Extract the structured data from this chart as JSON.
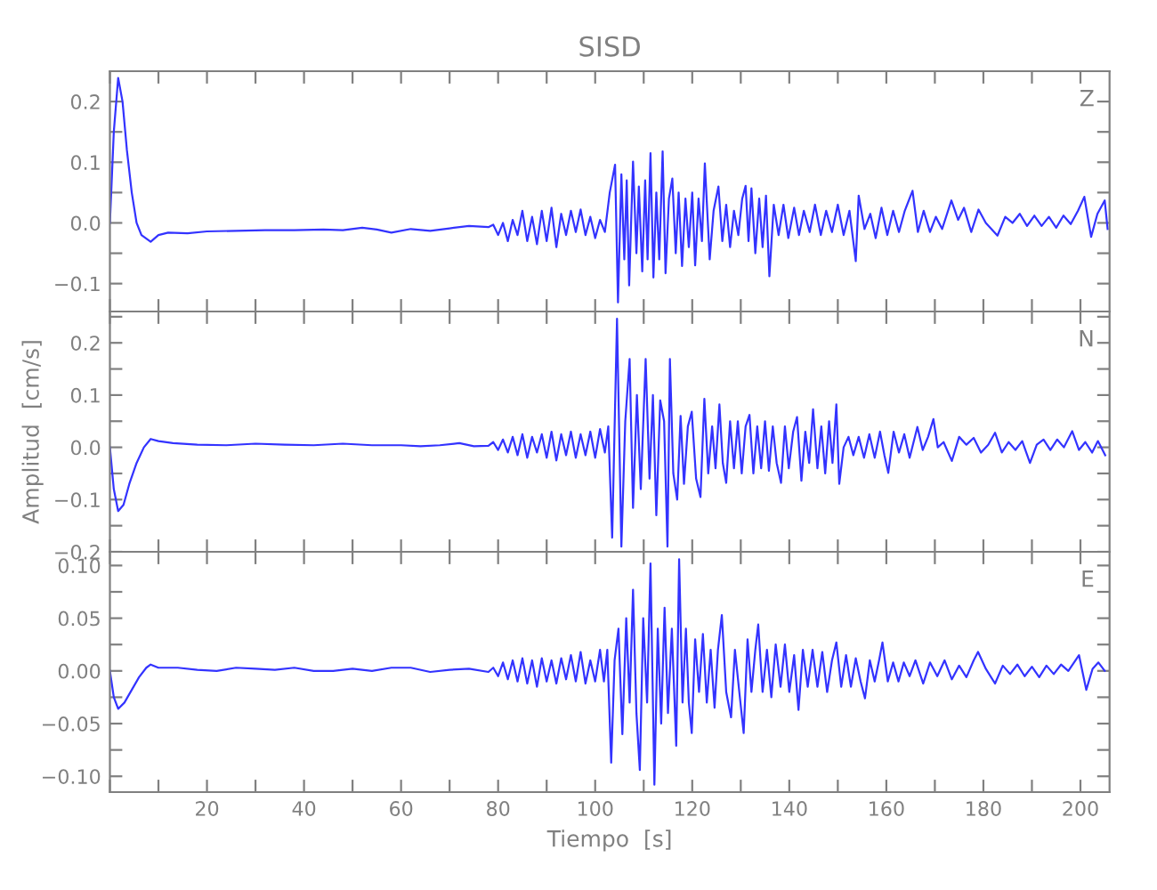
{
  "chart_data": [
    {
      "type": "line",
      "title": "SISD",
      "annotations": [
        "Z"
      ],
      "tick_labels": "y",
      "xlim": [
        0,
        206
      ],
      "xticks": [
        {
          "value": 0,
          "label": null
        },
        {
          "value": 10,
          "label": null
        },
        {
          "value": 20,
          "label": null
        },
        {
          "value": 30,
          "label": null
        },
        {
          "value": 40,
          "label": null
        },
        {
          "value": 50,
          "label": null
        },
        {
          "value": 60,
          "label": null
        },
        {
          "value": 70,
          "label": null
        },
        {
          "value": 80,
          "label": null
        },
        {
          "value": 90,
          "label": null
        },
        {
          "value": 100,
          "label": null
        },
        {
          "value": 110,
          "label": null
        },
        {
          "value": 120,
          "label": null
        },
        {
          "value": 130,
          "label": null
        },
        {
          "value": 140,
          "label": null
        },
        {
          "value": 150,
          "label": null
        },
        {
          "value": 160,
          "label": null
        },
        {
          "value": 170,
          "label": null
        },
        {
          "value": 180,
          "label": null
        },
        {
          "value": 190,
          "label": null
        },
        {
          "value": 200,
          "label": null
        }
      ],
      "ylim": [
        -0.146,
        0.25
      ],
      "yticks": [
        {
          "value": -0.1,
          "label": "−0.1"
        },
        {
          "value": -0.05,
          "label": null
        },
        {
          "value": 0,
          "label": "0.0"
        },
        {
          "value": 0.05,
          "label": null
        },
        {
          "value": 0.1,
          "label": "0.1"
        },
        {
          "value": 0.15,
          "label": null
        },
        {
          "value": 0.2,
          "label": "0.2"
        }
      ],
      "series": [
        {
          "color": "#3333ff",
          "x": [
            0,
            0.8,
            1.7,
            2.6,
            3.5,
            4.5,
            5.5,
            6.5,
            8.4,
            10,
            12,
            16,
            20,
            26,
            32,
            38,
            44,
            48,
            52,
            55,
            58,
            62,
            66,
            70,
            74,
            78,
            79,
            80,
            81,
            82,
            83,
            84,
            85,
            86,
            87,
            88,
            89,
            90,
            91,
            92,
            93,
            94,
            95,
            96,
            97,
            98,
            99,
            100,
            101,
            102,
            103,
            104.1,
            104.7,
            105.4,
            106,
            106.5,
            107,
            107.8,
            108.5,
            109,
            109.7,
            110.3,
            110.8,
            111.4,
            112,
            112.6,
            113.2,
            113.9,
            114.5,
            115.2,
            115.9,
            116.6,
            117.2,
            117.9,
            118.6,
            119.3,
            120,
            120.6,
            121.3,
            122,
            122.6,
            123.6,
            124.4,
            125.4,
            126.2,
            127,
            127.8,
            128.6,
            129.5,
            130.3,
            131,
            131.6,
            132.2,
            133,
            133.8,
            134.5,
            135.2,
            135.9,
            136.8,
            137.8,
            138.8,
            139.8,
            141,
            142,
            143,
            144.2,
            145.3,
            146.5,
            147.6,
            148.8,
            150,
            151.2,
            152.4,
            153.7,
            154.3,
            155.5,
            156.7,
            157.8,
            159,
            160.2,
            161.4,
            162.6,
            163.8,
            165.4,
            166.5,
            167.7,
            169,
            170.2,
            171.5,
            173.4,
            174.8,
            176,
            177.5,
            179,
            180.5,
            182.9,
            184.5,
            186,
            187.5,
            189,
            190.5,
            192,
            193.5,
            195,
            196.5,
            198,
            199.5,
            200.8,
            202.2,
            203.5,
            205,
            205.6
          ],
          "values": [
            0.0,
            0.15,
            0.239,
            0.2,
            0.12,
            0.05,
            0.0,
            -0.02,
            -0.031,
            -0.02,
            -0.016,
            -0.017,
            -0.014,
            -0.013,
            -0.012,
            -0.012,
            -0.011,
            -0.012,
            -0.008,
            -0.011,
            -0.016,
            -0.01,
            -0.013,
            -0.009,
            -0.005,
            -0.007,
            -0.003,
            -0.02,
            0.0,
            -0.03,
            0.005,
            -0.02,
            0.02,
            -0.03,
            0.01,
            -0.035,
            0.02,
            -0.03,
            0.025,
            -0.04,
            0.015,
            -0.02,
            0.02,
            -0.015,
            0.022,
            -0.02,
            0.01,
            -0.025,
            0.005,
            -0.015,
            0.05,
            0.096,
            -0.131,
            0.08,
            -0.06,
            0.07,
            -0.103,
            0.101,
            -0.05,
            0.06,
            -0.08,
            0.07,
            -0.06,
            0.115,
            -0.09,
            0.05,
            -0.06,
            0.118,
            -0.083,
            0.04,
            0.073,
            -0.05,
            0.05,
            -0.071,
            0.04,
            -0.04,
            0.05,
            -0.07,
            0.04,
            -0.03,
            0.098,
            -0.06,
            0.02,
            0.06,
            -0.03,
            0.03,
            -0.04,
            0.02,
            -0.02,
            0.04,
            0.061,
            -0.03,
            0.057,
            -0.05,
            0.04,
            -0.04,
            0.045,
            -0.088,
            0.03,
            -0.02,
            0.03,
            -0.025,
            0.025,
            -0.02,
            0.02,
            -0.015,
            0.03,
            -0.02,
            0.02,
            -0.015,
            0.03,
            -0.02,
            0.02,
            -0.063,
            0.045,
            -0.01,
            0.015,
            -0.025,
            0.025,
            -0.02,
            0.02,
            -0.015,
            0.02,
            0.053,
            -0.015,
            0.02,
            -0.015,
            0.01,
            -0.01,
            0.037,
            0.005,
            0.025,
            -0.015,
            0.022,
            0.0,
            -0.021,
            0.01,
            0.0,
            0.015,
            -0.005,
            0.012,
            -0.005,
            0.01,
            -0.008,
            0.012,
            -0.002,
            0.02,
            0.043,
            -0.023,
            0.015,
            0.037,
            -0.01
          ]
        }
      ]
    },
    {
      "type": "line",
      "ylabel": "Amplitud  [cm/s]",
      "annotations": [
        "N"
      ],
      "tick_labels": "y",
      "xlim": [
        0,
        206
      ],
      "xticks": [
        {
          "value": 0,
          "label": null
        },
        {
          "value": 10,
          "label": null
        },
        {
          "value": 20,
          "label": null
        },
        {
          "value": 30,
          "label": null
        },
        {
          "value": 40,
          "label": null
        },
        {
          "value": 50,
          "label": null
        },
        {
          "value": 60,
          "label": null
        },
        {
          "value": 70,
          "label": null
        },
        {
          "value": 80,
          "label": null
        },
        {
          "value": 90,
          "label": null
        },
        {
          "value": 100,
          "label": null
        },
        {
          "value": 110,
          "label": null
        },
        {
          "value": 120,
          "label": null
        },
        {
          "value": 130,
          "label": null
        },
        {
          "value": 140,
          "label": null
        },
        {
          "value": 150,
          "label": null
        },
        {
          "value": 160,
          "label": null
        },
        {
          "value": 170,
          "label": null
        },
        {
          "value": 180,
          "label": null
        },
        {
          "value": 190,
          "label": null
        },
        {
          "value": 200,
          "label": null
        }
      ],
      "ylim": [
        -0.2,
        0.26
      ],
      "yticks": [
        {
          "value": -0.2,
          "label": "−0.2"
        },
        {
          "value": -0.15,
          "label": null
        },
        {
          "value": -0.1,
          "label": "−0.1"
        },
        {
          "value": -0.05,
          "label": null
        },
        {
          "value": 0,
          "label": "0.0"
        },
        {
          "value": 0.05,
          "label": null
        },
        {
          "value": 0.1,
          "label": "0.1"
        },
        {
          "value": 0.15,
          "label": null
        },
        {
          "value": 0.2,
          "label": "0.2"
        },
        {
          "value": 0.25,
          "label": null
        }
      ],
      "series": [
        {
          "color": "#3333ff",
          "x": [
            0,
            0.8,
            1.7,
            2.8,
            4,
            5.5,
            7,
            8.4,
            10,
            13,
            18,
            24,
            30,
            36,
            42,
            48,
            54,
            60,
            64,
            68,
            72,
            75,
            78,
            79,
            80,
            81,
            82,
            83,
            84,
            85,
            86,
            87,
            88,
            89,
            90,
            91,
            92,
            93,
            94,
            95,
            96,
            97,
            98,
            99,
            100,
            101,
            102,
            102.7,
            103.5,
            104.5,
            105.4,
            106.2,
            107.1,
            107.8,
            108.6,
            109.4,
            110.4,
            111.2,
            111.9,
            112.6,
            113.4,
            114.2,
            114.9,
            115.4,
            116.1,
            116.9,
            117.6,
            118.3,
            119.1,
            119.9,
            120.8,
            121.7,
            122.5,
            123.3,
            124.1,
            124.8,
            125.6,
            126.3,
            127,
            127.8,
            128.6,
            129.4,
            130.2,
            131,
            131.8,
            132.6,
            133.4,
            134.2,
            135,
            135.8,
            136.6,
            137.4,
            138.3,
            139.1,
            139.9,
            140.8,
            141.6,
            142.5,
            143.3,
            144.1,
            144.9,
            145.8,
            146.6,
            147.4,
            148.2,
            148.9,
            149.7,
            150.3,
            151.2,
            152.2,
            153.2,
            154.3,
            155.4,
            156.5,
            157.6,
            158.7,
            159.6,
            160.4,
            161.5,
            162.6,
            163.7,
            164.8,
            166.4,
            167.5,
            168.6,
            169.7,
            170.6,
            171.8,
            173.5,
            175,
            176.5,
            178,
            179.5,
            181,
            182.4,
            183.8,
            185.2,
            186.6,
            188,
            189.6,
            191,
            192.4,
            193.8,
            195.2,
            196.6,
            198.3,
            199.7,
            201,
            202.4,
            203.6,
            205.1
          ],
          "values": [
            0.0,
            -0.08,
            -0.122,
            -0.11,
            -0.07,
            -0.03,
            0.0,
            0.016,
            0.012,
            0.008,
            0.005,
            0.004,
            0.007,
            0.005,
            0.004,
            0.007,
            0.004,
            0.004,
            0.002,
            0.004,
            0.008,
            0.002,
            0.003,
            0.01,
            -0.005,
            0.015,
            -0.01,
            0.02,
            -0.015,
            0.025,
            -0.02,
            0.02,
            -0.01,
            0.025,
            -0.02,
            0.03,
            -0.025,
            0.025,
            -0.015,
            0.03,
            -0.02,
            0.025,
            -0.015,
            0.03,
            -0.02,
            0.035,
            -0.01,
            0.04,
            -0.173,
            0.246,
            -0.19,
            0.05,
            0.169,
            -0.116,
            0.1,
            -0.08,
            0.169,
            -0.06,
            0.1,
            -0.13,
            0.09,
            0.05,
            -0.19,
            0.169,
            -0.05,
            -0.1,
            0.06,
            -0.07,
            0.04,
            0.068,
            -0.06,
            -0.095,
            0.093,
            -0.05,
            0.04,
            -0.04,
            0.082,
            -0.03,
            -0.068,
            0.05,
            -0.04,
            0.05,
            -0.05,
            0.04,
            0.062,
            -0.05,
            0.04,
            -0.04,
            0.05,
            -0.045,
            0.04,
            -0.03,
            -0.068,
            0.04,
            -0.04,
            0.03,
            0.058,
            -0.064,
            0.03,
            -0.03,
            0.073,
            -0.04,
            0.04,
            -0.05,
            0.05,
            -0.03,
            0.082,
            -0.07,
            0.0,
            0.02,
            -0.015,
            0.02,
            -0.02,
            0.025,
            -0.02,
            0.03,
            -0.015,
            -0.049,
            0.03,
            -0.01,
            0.025,
            -0.02,
            0.039,
            -0.005,
            0.02,
            0.054,
            0.0,
            0.01,
            -0.026,
            0.02,
            0.005,
            0.018,
            -0.01,
            0.005,
            0.028,
            -0.01,
            0.01,
            -0.005,
            0.012,
            -0.03,
            0.005,
            0.015,
            -0.005,
            0.015,
            0.0,
            0.031,
            -0.005,
            0.01,
            -0.01,
            0.012,
            -0.015
          ]
        }
      ]
    },
    {
      "type": "line",
      "xlabel": "Tiempo  [s]",
      "annotations": [
        "E"
      ],
      "xlim": [
        0,
        206
      ],
      "xticks": [
        {
          "value": 0,
          "label": null
        },
        {
          "value": 10,
          "label": null
        },
        {
          "value": 20,
          "label": "20"
        },
        {
          "value": 30,
          "label": null
        },
        {
          "value": 40,
          "label": "40"
        },
        {
          "value": 50,
          "label": null
        },
        {
          "value": 60,
          "label": "60"
        },
        {
          "value": 70,
          "label": null
        },
        {
          "value": 80,
          "label": "80"
        },
        {
          "value": 90,
          "label": null
        },
        {
          "value": 100,
          "label": "100"
        },
        {
          "value": 110,
          "label": null
        },
        {
          "value": 120,
          "label": "120"
        },
        {
          "value": 130,
          "label": null
        },
        {
          "value": 140,
          "label": "140"
        },
        {
          "value": 150,
          "label": null
        },
        {
          "value": 160,
          "label": "160"
        },
        {
          "value": 170,
          "label": null
        },
        {
          "value": 180,
          "label": "180"
        },
        {
          "value": 190,
          "label": null
        },
        {
          "value": 200,
          "label": "200"
        }
      ],
      "ylim": [
        -0.115,
        0.113
      ],
      "yticks": [
        {
          "value": -0.1,
          "label": "−0.10"
        },
        {
          "value": -0.075,
          "label": null
        },
        {
          "value": -0.05,
          "label": "−0.05"
        },
        {
          "value": -0.025,
          "label": null
        },
        {
          "value": 0,
          "label": "0.00"
        },
        {
          "value": 0.025,
          "label": null
        },
        {
          "value": 0.05,
          "label": "0.05"
        },
        {
          "value": 0.075,
          "label": null
        },
        {
          "value": 0.1,
          "label": "0.10"
        }
      ],
      "series": [
        {
          "color": "#3333ff",
          "x": [
            0,
            0.8,
            1.7,
            3,
            4.5,
            6,
            7.5,
            8.4,
            10,
            14,
            18,
            22,
            26,
            30,
            34,
            38,
            42,
            46,
            50,
            54,
            58,
            62,
            66,
            70,
            74,
            78,
            79,
            80,
            81,
            82,
            83,
            84,
            85,
            86,
            87,
            88,
            89,
            90,
            91,
            92,
            93,
            94,
            95,
            96,
            97,
            98,
            99,
            100,
            101,
            101.8,
            102.5,
            103.3,
            104,
            104.8,
            105.6,
            106.4,
            107.1,
            107.8,
            108.5,
            109.2,
            109.9,
            110.7,
            111.4,
            112.2,
            112.9,
            113.6,
            114.3,
            115,
            115.8,
            116.7,
            117.3,
            118,
            118.7,
            119.3,
            119.9,
            120.6,
            121.4,
            122.2,
            123,
            123.8,
            124.6,
            125.3,
            126.1,
            127,
            128,
            128.8,
            129.7,
            130.6,
            131.4,
            132.2,
            133,
            133.6,
            134.5,
            135.4,
            136.3,
            137.2,
            138.2,
            139.1,
            140,
            141,
            141.9,
            142.8,
            143.8,
            144.8,
            145.8,
            146.8,
            147.8,
            148.8,
            149.7,
            150.7,
            151.7,
            152.7,
            153.7,
            154.7,
            155.6,
            156.6,
            157.6,
            158.5,
            159.2,
            160.3,
            161.4,
            162.5,
            163.6,
            164.8,
            166,
            167.6,
            169,
            170.5,
            172,
            173.5,
            175,
            176.5,
            178,
            178.9,
            180.5,
            182.4,
            184,
            185.5,
            187,
            188.5,
            190,
            191.5,
            193,
            194.5,
            196,
            197.5,
            199.7,
            201.2,
            202.5,
            203.7,
            205
          ],
          "values": [
            0.0,
            -0.025,
            -0.036,
            -0.03,
            -0.018,
            -0.006,
            0.003,
            0.006,
            0.003,
            0.003,
            0.001,
            0.0,
            0.003,
            0.002,
            0.001,
            0.003,
            0.0,
            0.0,
            0.002,
            0.0,
            0.003,
            0.003,
            -0.001,
            0.001,
            0.002,
            -0.001,
            0.003,
            -0.005,
            0.008,
            -0.008,
            0.01,
            -0.01,
            0.012,
            -0.012,
            0.01,
            -0.015,
            0.012,
            -0.01,
            0.01,
            -0.012,
            0.012,
            -0.008,
            0.015,
            -0.01,
            0.018,
            -0.012,
            0.01,
            -0.01,
            0.02,
            -0.01,
            0.02,
            -0.087,
            0.01,
            0.04,
            -0.06,
            0.05,
            -0.03,
            0.077,
            -0.04,
            -0.094,
            0.05,
            -0.03,
            0.102,
            -0.108,
            0.04,
            -0.05,
            0.06,
            -0.04,
            0.04,
            -0.071,
            0.106,
            -0.03,
            0.04,
            -0.03,
            -0.059,
            0.03,
            -0.02,
            0.035,
            -0.03,
            0.02,
            -0.035,
            0.02,
            0.053,
            -0.02,
            -0.044,
            0.02,
            -0.02,
            -0.059,
            0.03,
            -0.02,
            0.02,
            0.044,
            -0.02,
            0.02,
            -0.025,
            0.025,
            -0.015,
            0.025,
            -0.02,
            0.015,
            -0.037,
            0.02,
            -0.015,
            0.02,
            -0.015,
            0.018,
            -0.02,
            0.01,
            0.027,
            -0.015,
            0.015,
            -0.015,
            0.012,
            -0.01,
            -0.026,
            0.01,
            -0.01,
            0.01,
            0.027,
            -0.01,
            0.008,
            -0.01,
            0.008,
            -0.005,
            0.01,
            -0.012,
            0.008,
            -0.005,
            0.01,
            -0.008,
            0.005,
            -0.006,
            0.01,
            0.018,
            0.002,
            -0.012,
            0.005,
            -0.003,
            0.006,
            -0.005,
            0.004,
            -0.006,
            0.005,
            -0.003,
            0.006,
            0.0,
            0.015,
            -0.018,
            0.002,
            0.008,
            0.0
          ]
        }
      ]
    }
  ]
}
